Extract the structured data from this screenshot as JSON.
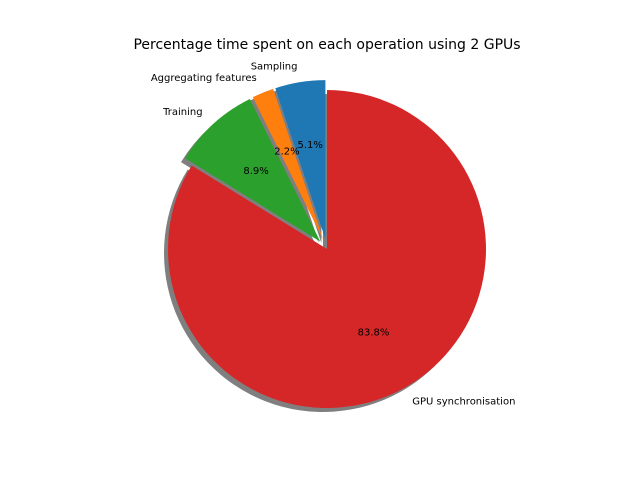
{
  "chart_data": {
    "type": "pie",
    "title": "Percentage time spent on each operation using 2 GPUs",
    "slices": [
      {
        "label": "Sampling",
        "value": 5.1,
        "pct_text": "5.1%",
        "color": "#1f77b4"
      },
      {
        "label": "Aggregating features",
        "value": 2.2,
        "pct_text": "2.2%",
        "color": "#ff7f0e"
      },
      {
        "label": "Training",
        "value": 8.9,
        "pct_text": "8.9%",
        "color": "#2ca02c"
      },
      {
        "label": "GPU synchronisation",
        "value": 83.8,
        "pct_text": "83.8%",
        "color": "#d62728"
      }
    ],
    "start_angle_deg": 90,
    "direction": "counterclockwise",
    "exploded": [
      "Sampling",
      "Aggregating features",
      "Training"
    ],
    "shadow": true,
    "legend": "none"
  }
}
